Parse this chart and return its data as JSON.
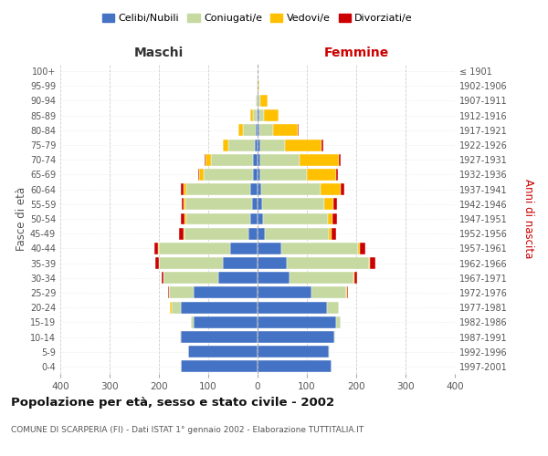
{
  "age_groups": [
    "0-4",
    "5-9",
    "10-14",
    "15-19",
    "20-24",
    "25-29",
    "30-34",
    "35-39",
    "40-44",
    "45-49",
    "50-54",
    "55-59",
    "60-64",
    "65-69",
    "70-74",
    "75-79",
    "80-84",
    "85-89",
    "90-94",
    "95-99",
    "100+"
  ],
  "birth_years": [
    "1997-2001",
    "1992-1996",
    "1987-1991",
    "1982-1986",
    "1977-1981",
    "1972-1976",
    "1967-1971",
    "1962-1966",
    "1957-1961",
    "1952-1956",
    "1947-1951",
    "1942-1946",
    "1937-1941",
    "1932-1936",
    "1927-1931",
    "1922-1926",
    "1917-1921",
    "1912-1916",
    "1907-1911",
    "1902-1906",
    "≤ 1901"
  ],
  "maschi": {
    "celibi": [
      155,
      140,
      155,
      130,
      155,
      130,
      80,
      70,
      55,
      18,
      15,
      12,
      15,
      10,
      10,
      5,
      4,
      2,
      0,
      0,
      0
    ],
    "coniugati": [
      0,
      1,
      3,
      5,
      20,
      50,
      110,
      130,
      145,
      130,
      130,
      135,
      130,
      100,
      85,
      55,
      25,
      8,
      3,
      1,
      0
    ],
    "vedovi": [
      0,
      0,
      0,
      0,
      2,
      0,
      0,
      0,
      2,
      2,
      3,
      3,
      5,
      8,
      10,
      10,
      10,
      4,
      1,
      0,
      0
    ],
    "divorziati": [
      0,
      0,
      0,
      0,
      0,
      2,
      5,
      8,
      8,
      10,
      8,
      4,
      5,
      3,
      2,
      0,
      0,
      0,
      0,
      0,
      0
    ]
  },
  "femmine": {
    "nubili": [
      150,
      145,
      155,
      160,
      140,
      110,
      65,
      60,
      48,
      15,
      12,
      10,
      8,
      5,
      5,
      5,
      3,
      3,
      1,
      0,
      0
    ],
    "coniugate": [
      0,
      1,
      3,
      8,
      25,
      70,
      130,
      165,
      155,
      130,
      130,
      125,
      120,
      95,
      80,
      50,
      28,
      10,
      5,
      2,
      0
    ],
    "vedove": [
      0,
      0,
      0,
      0,
      0,
      2,
      2,
      3,
      5,
      5,
      10,
      18,
      40,
      60,
      80,
      75,
      50,
      30,
      15,
      2,
      0
    ],
    "divorziate": [
      0,
      0,
      0,
      0,
      0,
      2,
      5,
      10,
      10,
      10,
      10,
      8,
      8,
      3,
      3,
      3,
      3,
      0,
      0,
      0,
      0
    ]
  },
  "colors": {
    "celibi": "#4472c4",
    "coniugati": "#c5d9a0",
    "vedovi": "#ffc000",
    "divorziati": "#cc0000"
  },
  "legend_labels": [
    "Celibi/Nubili",
    "Coniugati/e",
    "Vedovi/e",
    "Divorziati/e"
  ],
  "title": "Popolazione per età, sesso e stato civile - 2002",
  "subtitle": "COMUNE DI SCARPERIA (FI) - Dati ISTAT 1° gennaio 2002 - Elaborazione TUTTITALIA.IT",
  "label_maschi": "Maschi",
  "label_femmine": "Femmine",
  "ylabel_left": "Fasce di età",
  "ylabel_right": "Anni di nascita",
  "xlim": 400,
  "bg_color": "#ffffff",
  "grid_color": "#cccccc",
  "maschi_color": "#333333",
  "femmine_color": "#cc0000"
}
